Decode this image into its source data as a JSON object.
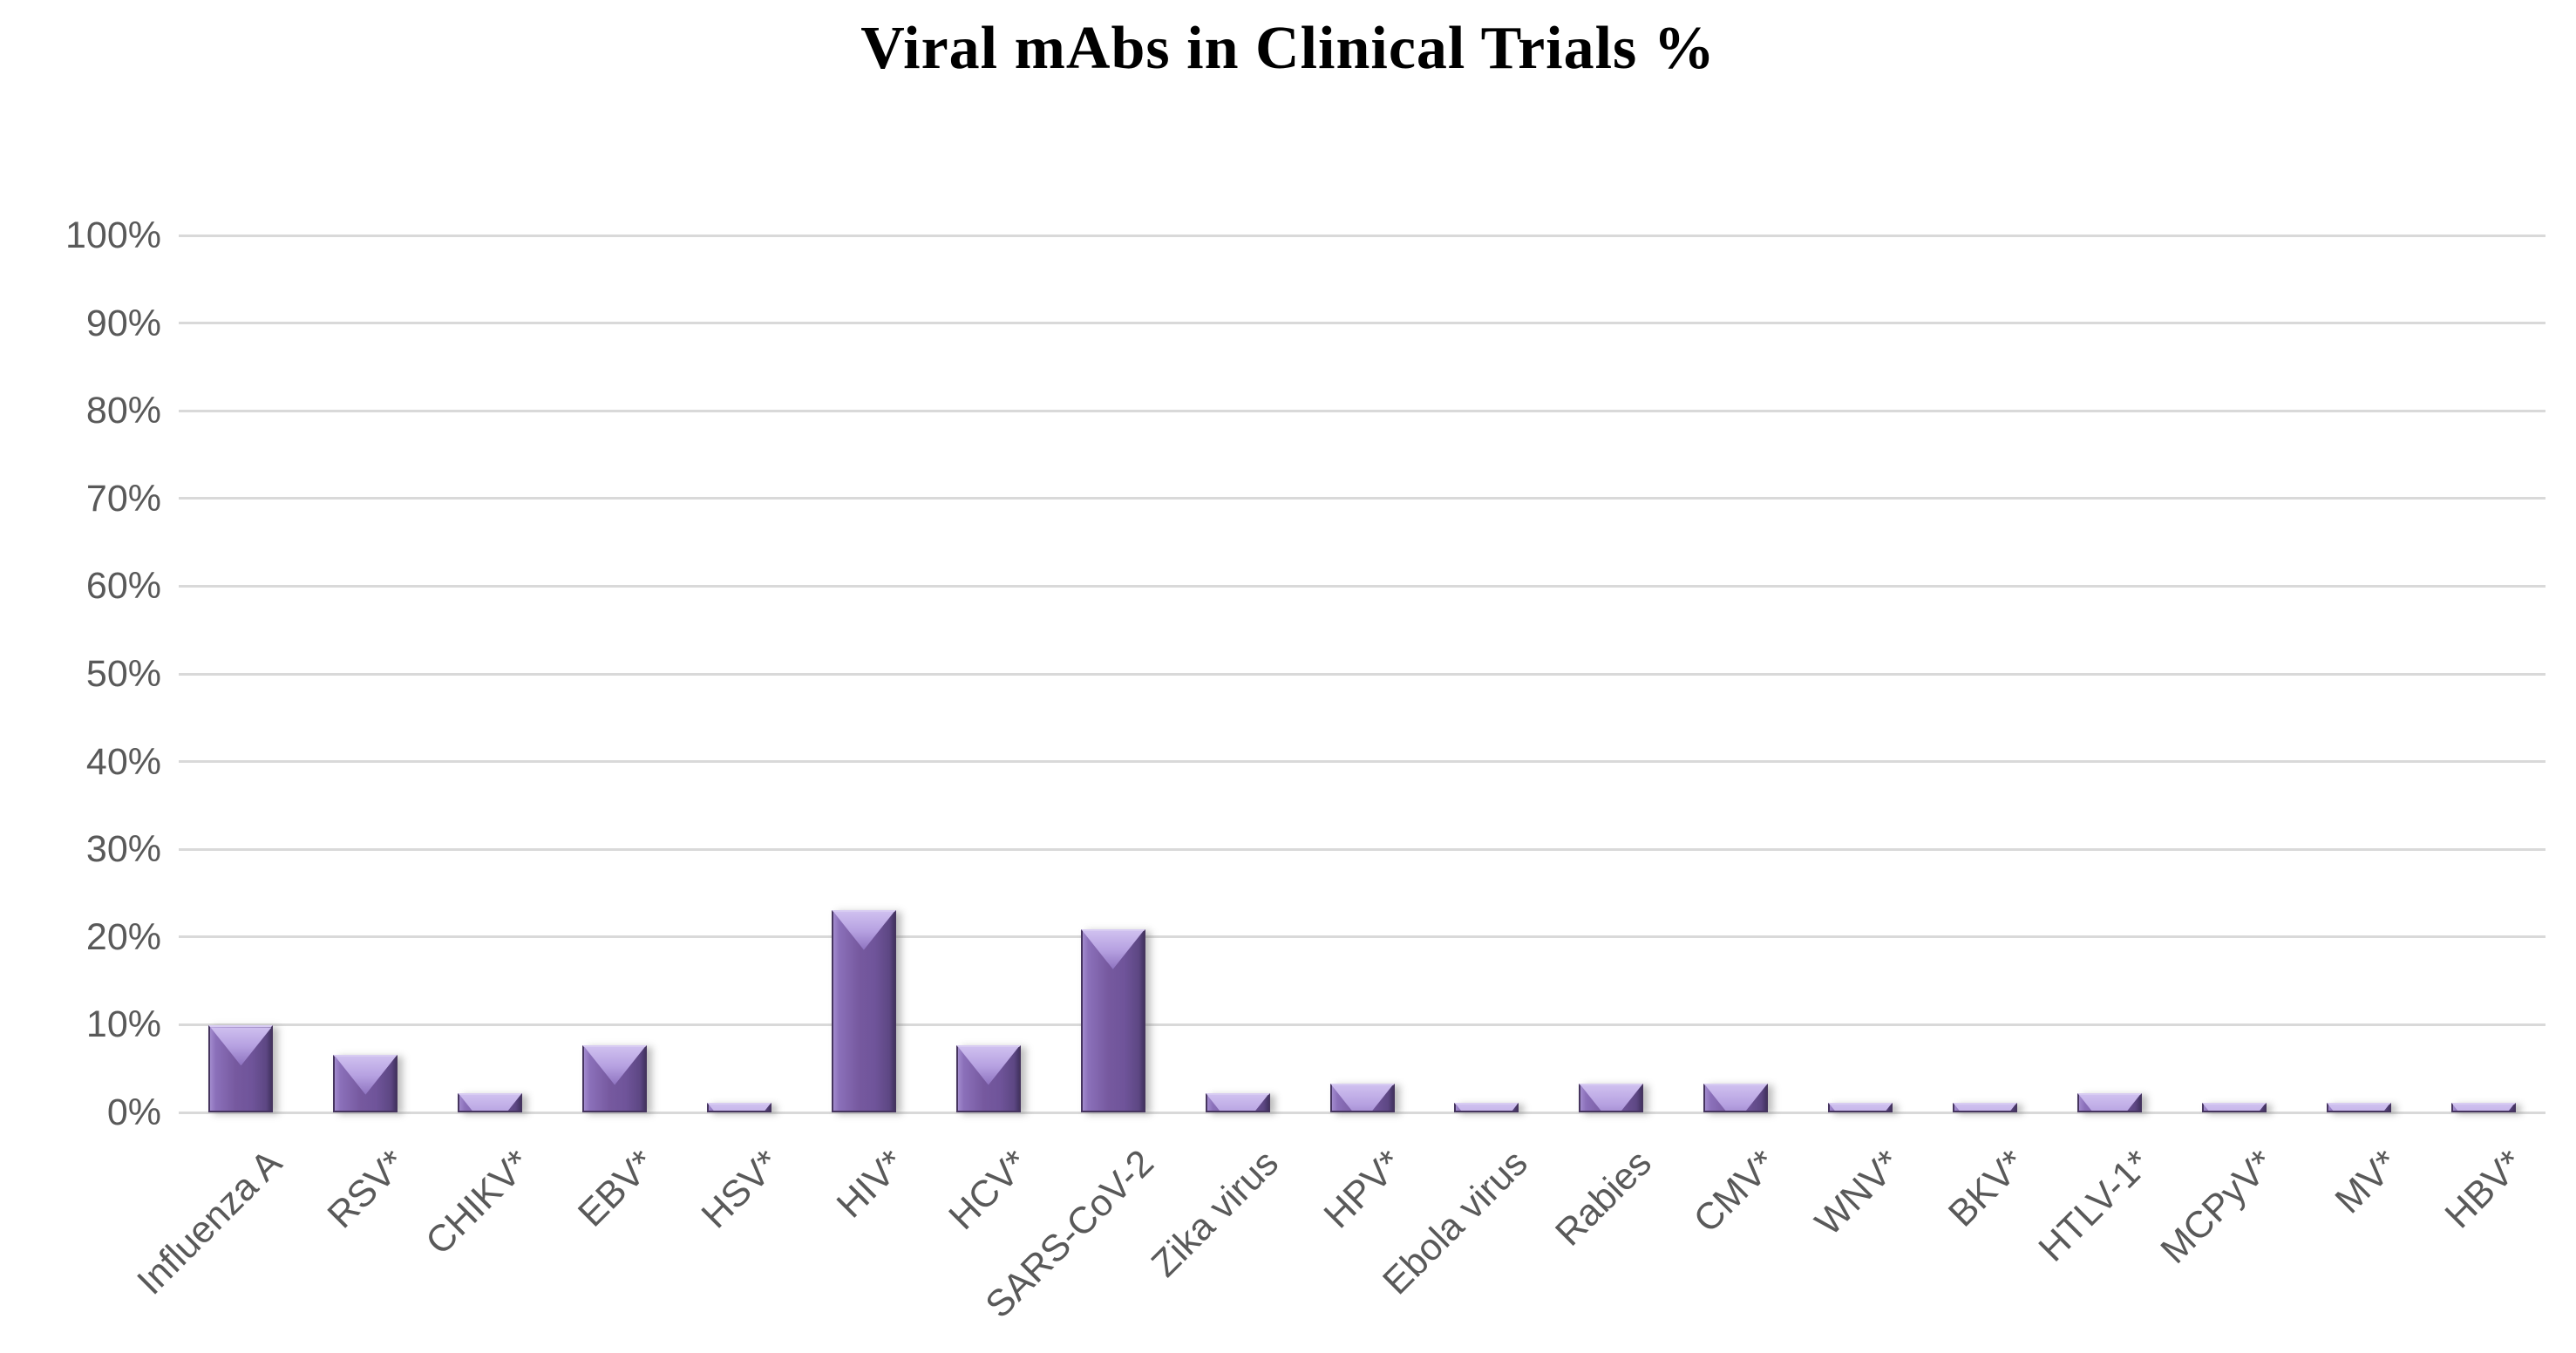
{
  "chart_data": {
    "type": "bar",
    "title": "Viral mAbs in Clinical Trials %",
    "categories": [
      "Influenza A",
      "RSV*",
      "CHIKV*",
      "EBV*",
      "HSV*",
      "HIV*",
      "HCV*",
      "SARS-CoV-2",
      "Zika virus",
      "HPV*",
      "Ebola virus",
      "Rabies",
      "CMV*",
      "WNV*",
      "BKV*",
      "HTLV-1*",
      "MCPyV*",
      "MV*",
      "HBV*"
    ],
    "values": [
      9.9,
      6.6,
      2.2,
      7.7,
      1.1,
      23.1,
      7.7,
      20.9,
      2.2,
      3.3,
      1.1,
      3.3,
      3.3,
      1.1,
      1.1,
      2.2,
      1.1,
      1.1,
      1.1
    ],
    "value_unit": "%",
    "xlabel": "",
    "ylabel": "",
    "ylim": [
      0,
      100
    ],
    "ytick_step": 10,
    "ytick_labels": [
      "0%",
      "10%",
      "20%",
      "30%",
      "40%",
      "50%",
      "60%",
      "70%",
      "80%",
      "90%",
      "100%"
    ],
    "x_tick_rotation_deg": 45,
    "grid": true,
    "legend": "none",
    "colors": {
      "background": "#ffffff",
      "title_text": "#000000",
      "axis_text": "#595959",
      "gridline": "#d9d9d9",
      "bar_fill": "#76599f",
      "bar_fill_light": "#a28bce",
      "bar_fill_dark": "#443463",
      "bar_highlight": "#cfc0ef",
      "bar_border": "#46355f"
    }
  }
}
